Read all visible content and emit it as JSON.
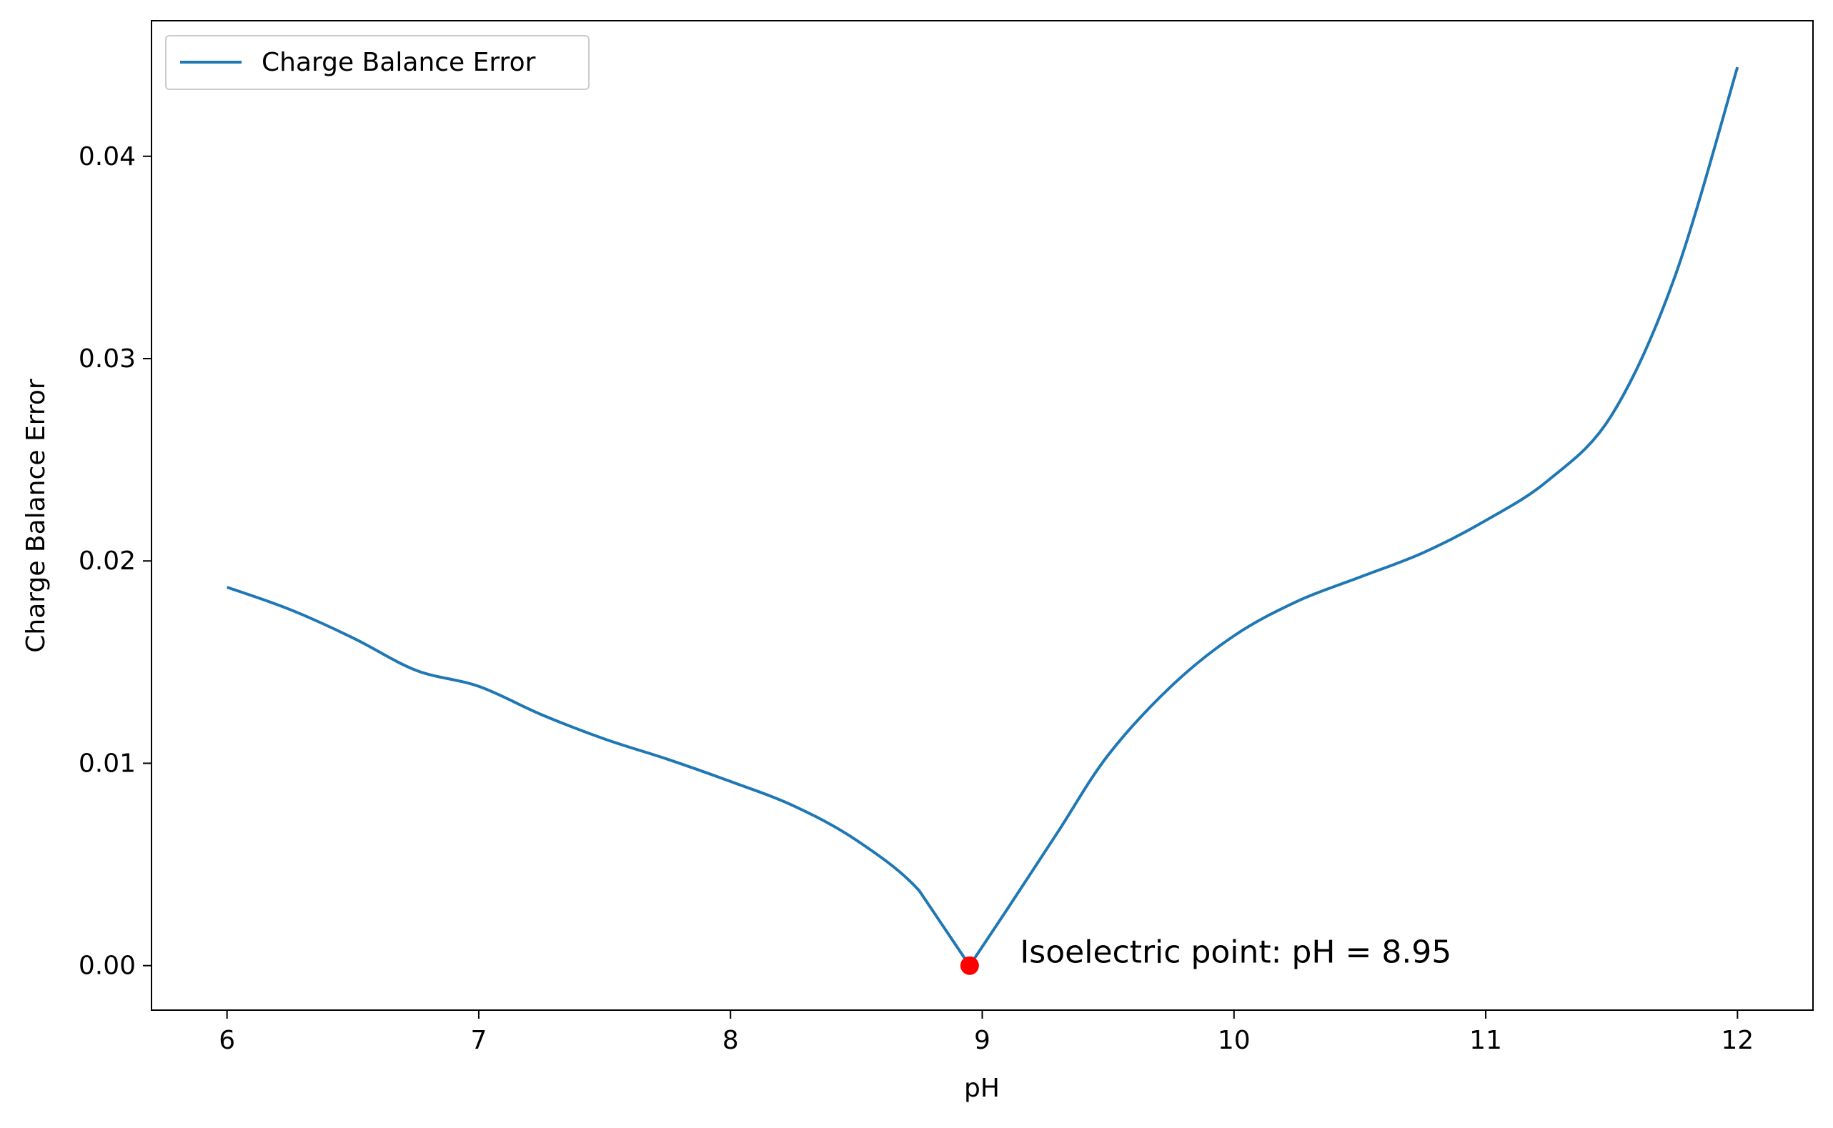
{
  "chart_data": {
    "type": "line",
    "title": "",
    "xlabel": "pH",
    "ylabel": "Charge Balance Error",
    "xlim": [
      5.7,
      12.3
    ],
    "ylim": [
      -0.0022,
      0.0467
    ],
    "xticks": [
      6,
      7,
      8,
      9,
      10,
      11,
      12
    ],
    "xtick_labels": [
      "6",
      "7",
      "8",
      "9",
      "10",
      "11",
      "12"
    ],
    "yticks": [
      0.0,
      0.01,
      0.02,
      0.03,
      0.04
    ],
    "ytick_labels": [
      "0.00",
      "0.01",
      "0.02",
      "0.03",
      "0.04"
    ],
    "grid": false,
    "legend": {
      "placement": "top-left",
      "entries": [
        "Charge Balance Error"
      ]
    },
    "series": [
      {
        "name": "Charge Balance Error",
        "color": "#1f77b4",
        "x": [
          6.0,
          6.25,
          6.5,
          6.75,
          7.0,
          7.25,
          7.5,
          7.75,
          8.0,
          8.25,
          8.5,
          8.75,
          8.95,
          9.1,
          9.3,
          9.5,
          9.75,
          10.0,
          10.25,
          10.5,
          10.75,
          11.0,
          11.25,
          11.5,
          11.75,
          12.0
        ],
        "y": [
          0.0187,
          0.0176,
          0.0162,
          0.0146,
          0.0138,
          0.0124,
          0.0112,
          0.0102,
          0.0091,
          0.0079,
          0.0062,
          0.0037,
          0.0,
          0.0028,
          0.0066,
          0.0104,
          0.0138,
          0.0163,
          0.018,
          0.0192,
          0.0204,
          0.022,
          0.024,
          0.0272,
          0.034,
          0.0444
        ]
      }
    ],
    "highlight_point": {
      "x": 8.95,
      "y": 0.0,
      "color": "#ff0000"
    },
    "annotation": {
      "text": "Isoelectric point: pH = 8.95",
      "x": 9.15,
      "y": 0.0
    }
  }
}
